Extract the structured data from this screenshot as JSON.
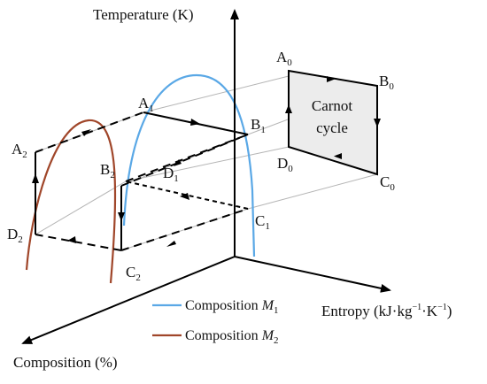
{
  "axes": {
    "y_title": "Temperature (K)",
    "x_title_main": "Entropy (kJ·kg",
    "x_title_sup1": "−1",
    "x_title_mid": "·K",
    "x_title_sup2": "−1",
    "x_title_end": ")",
    "z_title": "Composition (%)"
  },
  "carnot": {
    "line1": "Carnot",
    "line2": "cycle"
  },
  "points": {
    "A0": {
      "base": "A",
      "sub": "0"
    },
    "B0": {
      "base": "B",
      "sub": "0"
    },
    "C0": {
      "base": "C",
      "sub": "0"
    },
    "D0": {
      "base": "D",
      "sub": "0"
    },
    "A1": {
      "base": "A",
      "sub": "1"
    },
    "B1": {
      "base": "B",
      "sub": "1"
    },
    "C1": {
      "base": "C",
      "sub": "1"
    },
    "D1": {
      "base": "D",
      "sub": "1"
    },
    "A2": {
      "base": "A",
      "sub": "2"
    },
    "B2": {
      "base": "B",
      "sub": "2"
    },
    "C2": {
      "base": "C",
      "sub": "2"
    },
    "D2": {
      "base": "D",
      "sub": "2"
    }
  },
  "legend": {
    "m1": {
      "label": "Composition ",
      "symbol": "M",
      "sub": "1",
      "color": "#5aa8e6"
    },
    "m2": {
      "label": "Composition ",
      "symbol": "M",
      "sub": "2",
      "color": "#a0462a"
    }
  },
  "colors": {
    "axis": "#000000",
    "box_fill": "#ececec",
    "guide": "#b5b5b5"
  }
}
